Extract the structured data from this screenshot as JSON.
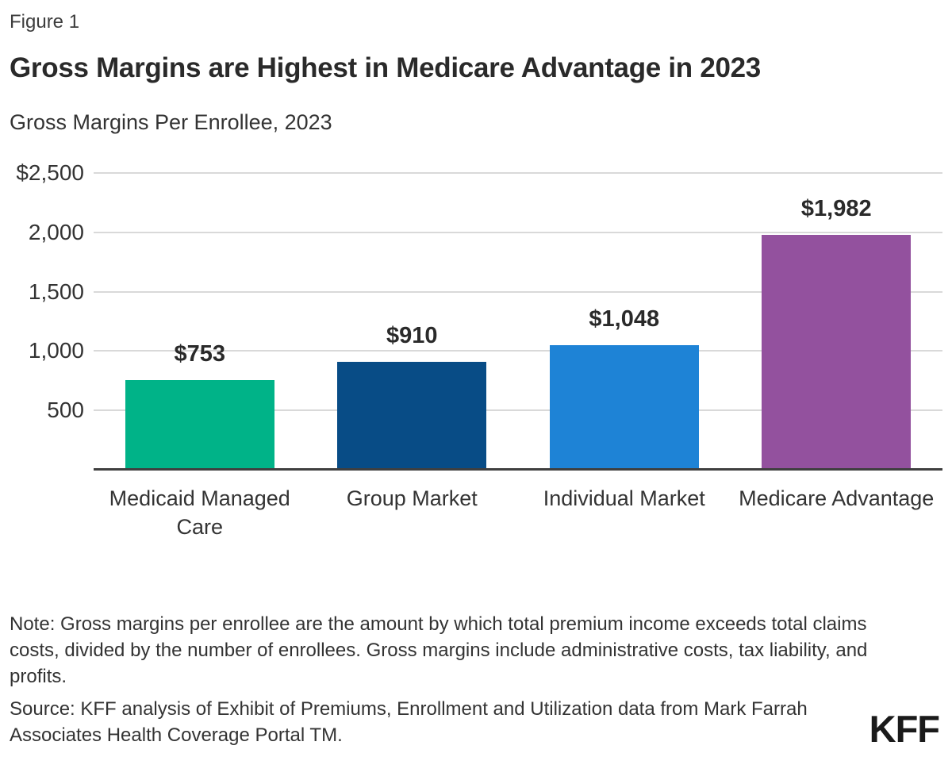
{
  "figure_label": "Figure 1",
  "title": "Gross Margins are Highest in Medicare Advantage in 2023",
  "subtitle": "Gross Margins Per Enrollee, 2023",
  "chart_data": {
    "type": "bar",
    "title": "Gross Margins are Highest in Medicare Advantage in 2023",
    "subtitle": "Gross Margins Per Enrollee, 2023",
    "categories": [
      "Medicaid Managed Care",
      "Group Market",
      "Individual Market",
      "Medicare Advantage"
    ],
    "values": [
      753,
      910,
      1048,
      1982
    ],
    "value_labels": [
      "$753",
      "$910",
      "$1,048",
      "$1,982"
    ],
    "bar_colors": [
      "#00B388",
      "#084C86",
      "#1E83D6",
      "#93519E"
    ],
    "xlabel": "",
    "ylabel": "",
    "ylim": [
      0,
      2500
    ],
    "yticks": [
      {
        "value": 2500,
        "label": "$2,500"
      },
      {
        "value": 2000,
        "label": "2,000"
      },
      {
        "value": 1500,
        "label": "1,500"
      },
      {
        "value": 1000,
        "label": "1,000"
      },
      {
        "value": 500,
        "label": "500"
      }
    ],
    "grid": "horizontal-only",
    "legend": "none"
  },
  "note": "Note: Gross margins per enrollee are the amount by which total premium income exceeds total claims costs, divided by the number of enrollees. Gross margins include administrative costs, tax liability, and profits.",
  "source": "Source: KFF analysis of Exhibit of Premiums, Enrollment and Utilization data from Mark Farrah Associates Health Coverage Portal TM.",
  "logo": "KFF",
  "colors": {
    "axis": "#3F3F3F",
    "gridline": "#D9D9D9",
    "text": "#333333",
    "title": "#2A2A2A",
    "background": "#FFFFFF"
  }
}
